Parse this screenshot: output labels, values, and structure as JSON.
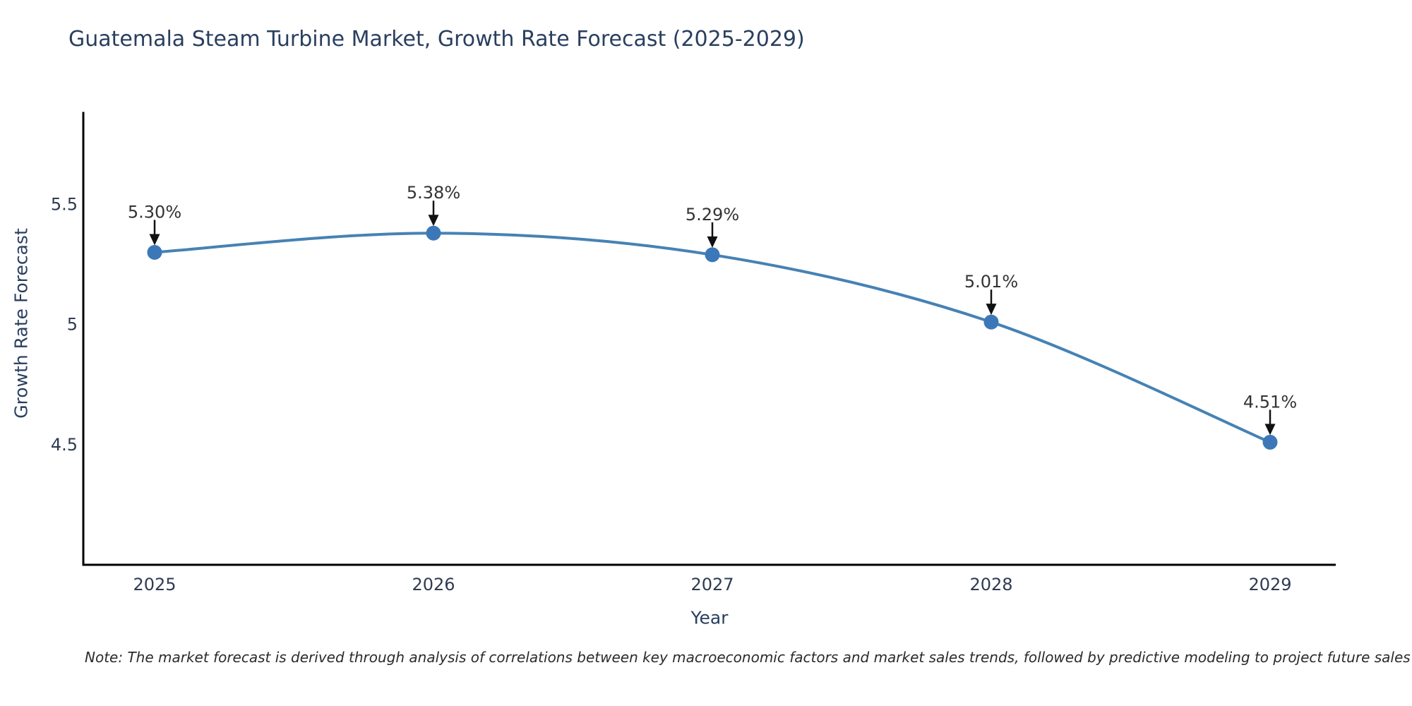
{
  "title": "Guatemala Steam Turbine Market, Growth Rate Forecast (2025-2029)",
  "note": "Note: The market forecast is derived through analysis of correlations between key macroeconomic factors and market sales trends, followed by predictive modeling to project future sales",
  "chart_data": {
    "type": "line",
    "title": "Guatemala Steam Turbine Market, Growth Rate Forecast (2025-2029)",
    "xlabel": "Year",
    "ylabel": "Growth Rate Forecast",
    "categories": [
      "2025",
      "2026",
      "2027",
      "2028",
      "2029"
    ],
    "values": [
      5.3,
      5.38,
      5.29,
      5.01,
      4.51
    ],
    "point_labels": [
      "5.30%",
      "5.38%",
      "5.29%",
      "5.01%",
      "4.51%"
    ],
    "ytick_values": [
      4.5,
      5.0,
      5.5
    ],
    "ytick_labels": [
      "4.5",
      "5",
      "5.5"
    ],
    "ylim": [
      4.0,
      5.88
    ],
    "grid": false,
    "legend": "none",
    "line_shape": "spline",
    "colors": {
      "line": "#4682b4",
      "marker": "#3c78b8",
      "axis": "#000000",
      "title_text": "#2a3f5f",
      "tick_text": "#2f3b52",
      "annotation_text": "#333333",
      "arrow": "#111111"
    }
  }
}
